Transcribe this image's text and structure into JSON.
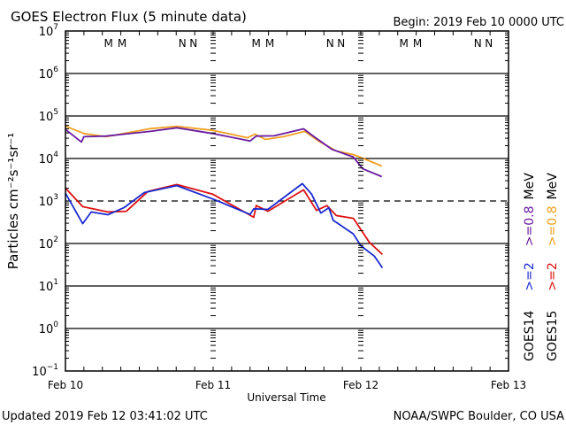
{
  "chart_data": {
    "type": "line",
    "title": "GOES Electron Flux (5 minute data)",
    "begin": "Begin: 2019 Feb 10 0000 UTC",
    "xlabel": "Universal Time",
    "ylabel": "Particles cm⁻²s⁻¹sr⁻¹",
    "x_unit": "hours since 2019 Feb 10 0000 UTC",
    "xlim": [
      0,
      72
    ],
    "x_ticks": [
      {
        "h": 0,
        "label": "Feb 10"
      },
      {
        "h": 24,
        "label": "Feb 11"
      },
      {
        "h": 48,
        "label": "Feb 12"
      },
      {
        "h": 72,
        "label": "Feb 13"
      }
    ],
    "y_scale": "log",
    "ylim_log10": [
      -1,
      7
    ],
    "y_tick_exponents": [
      7,
      6,
      5,
      4,
      3,
      2,
      1,
      0,
      -1
    ],
    "threshold_log10": 3,
    "grid": true,
    "markers": [
      {
        "h": 7,
        "label": "M",
        "color": "#1a1acc"
      },
      {
        "h": 9.2,
        "label": "M",
        "color": "#dd1111"
      },
      {
        "h": 19,
        "label": "N",
        "color": "#1a1acc"
      },
      {
        "h": 20.8,
        "label": "N",
        "color": "#dd1111"
      },
      {
        "h": 31,
        "label": "M",
        "color": "#1a1acc"
      },
      {
        "h": 33.2,
        "label": "M",
        "color": "#dd1111"
      },
      {
        "h": 43,
        "label": "N",
        "color": "#1a1acc"
      },
      {
        "h": 44.8,
        "label": "N",
        "color": "#dd1111"
      },
      {
        "h": 55,
        "label": "M",
        "color": "#1a1acc"
      },
      {
        "h": 57.2,
        "label": "M",
        "color": "#dd1111"
      },
      {
        "h": 67,
        "label": "N",
        "color": "#1a1acc"
      },
      {
        "h": 68.8,
        "label": "N",
        "color": "#dd1111"
      }
    ],
    "series": [
      {
        "name": "GOES15 >=0.8 MeV",
        "color": "#f0a020",
        "x": [
          0,
          3,
          6.6,
          9.5,
          13.8,
          18.1,
          23.9,
          29.6,
          30.8,
          32.5,
          35.4,
          38.9,
          41.1,
          44,
          46.8,
          49,
          51.4
        ],
        "log10_values": [
          4.75,
          4.6,
          4.5,
          4.6,
          4.69,
          4.77,
          4.65,
          4.5,
          4.56,
          4.46,
          4.5,
          4.65,
          4.4,
          4.19,
          4.08,
          3.98,
          3.81
        ]
      },
      {
        "name": "GOES14 >=0.8 MeV",
        "color": "#6a1aa0",
        "x": [
          0,
          2.6,
          3,
          6.6,
          9.5,
          13.8,
          18.1,
          23.9,
          30,
          31,
          33.9,
          38.7,
          40.4,
          43.3,
          46.8,
          48.3,
          51.4
        ],
        "log10_values": [
          4.67,
          4.4,
          4.5,
          4.54,
          4.56,
          4.65,
          4.71,
          4.6,
          4.4,
          4.54,
          4.52,
          4.71,
          4.5,
          4.23,
          4.02,
          3.77,
          3.56
        ]
      },
      {
        "name": "GOES15 >=2 MeV",
        "color": "#dd1111",
        "x": [
          0,
          2.8,
          6.9,
          9.9,
          13.4,
          18.1,
          23.9,
          30.6,
          31,
          32.9,
          38.7,
          40.8,
          42.5,
          44,
          46.8,
          49.4,
          51.5
        ],
        "log10_values": [
          3.29,
          2.88,
          2.73,
          2.77,
          3.21,
          3.4,
          3.15,
          2.63,
          2.88,
          2.77,
          3.25,
          2.79,
          2.88,
          2.67,
          2.58,
          2.04,
          1.73
        ]
      },
      {
        "name": "GOES14 >=2 MeV",
        "color": "#1a2ad0",
        "x": [
          0,
          2.8,
          4.2,
          6.9,
          9.5,
          12.8,
          18.1,
          24.3,
          30,
          30.6,
          32.9,
          38.5,
          40,
          41.5,
          42.8,
          43.5,
          46.8,
          48,
          50.2,
          51.5
        ],
        "log10_values": [
          3.17,
          2.48,
          2.73,
          2.69,
          2.83,
          3.21,
          3.35,
          3.04,
          2.67,
          2.83,
          2.79,
          3.42,
          3.15,
          2.73,
          2.83,
          2.56,
          2.21,
          1.96,
          1.69,
          1.44
        ]
      }
    ],
    "legend": {
      "placement": "right",
      "rows": [
        [
          {
            "text": "GOES14",
            "color": "#000000"
          },
          {
            "text": ">=2",
            "color": "#1a2ad0"
          },
          {
            "text": ">=0.8",
            "color": "#6a1aa0"
          },
          {
            "text": "MeV",
            "color": "#000000"
          }
        ],
        [
          {
            "text": "GOES15",
            "color": "#000000"
          },
          {
            "text": ">=2",
            "color": "#dd1111"
          },
          {
            "text": ">=0.8",
            "color": "#f0a020"
          },
          {
            "text": "MeV",
            "color": "#000000"
          }
        ]
      ]
    }
  },
  "footer": {
    "updated": "Updated 2019 Feb 12 03:41:02 UTC",
    "credit": "NOAA/SWPC Boulder, CO USA"
  }
}
